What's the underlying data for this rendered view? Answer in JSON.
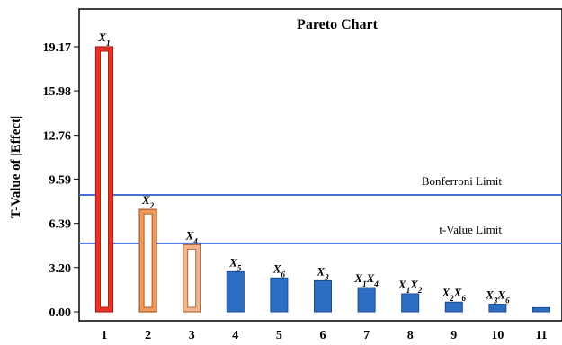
{
  "chart_data": {
    "type": "bar",
    "title": "Pareto Chart",
    "xlabel": "",
    "ylabel": "T-Value of |Effect|",
    "categories": [
      "1",
      "2",
      "3",
      "4",
      "5",
      "6",
      "7",
      "8",
      "9",
      "10",
      "11"
    ],
    "values": [
      19.17,
      7.4,
      4.85,
      2.9,
      2.45,
      2.25,
      1.75,
      1.3,
      0.7,
      0.55,
      0.3
    ],
    "bar_labels": [
      {
        "base": "X",
        "sub": "1"
      },
      {
        "base": "X",
        "sub": "2"
      },
      {
        "base": "X",
        "sub": "4"
      },
      {
        "base": "X",
        "sub": "5"
      },
      {
        "base": "X",
        "sub": "6"
      },
      {
        "base": "X",
        "sub": "3"
      },
      {
        "base": "X",
        "sub": "1",
        "base2": "X",
        "sub2": "4"
      },
      {
        "base": "X",
        "sub": "1",
        "base2": "X",
        "sub2": "2"
      },
      {
        "base": "X",
        "sub": "2",
        "base2": "X",
        "sub2": "6"
      },
      {
        "base": "X",
        "sub": "3",
        "base2": "X",
        "sub2": "6"
      },
      null
    ],
    "bar_styles": [
      "red-hollow",
      "orange-hollow",
      "peach-hollow",
      "blue",
      "blue",
      "blue",
      "blue",
      "blue",
      "blue",
      "blue",
      "blue"
    ],
    "yticks": [
      "0.00",
      "3.20",
      "6.39",
      "9.59",
      "12.76",
      "15.98",
      "19.17"
    ],
    "ylim": [
      0,
      21.2
    ],
    "reference_lines": [
      {
        "label": "Bonferroni Limit",
        "value": 8.45
      },
      {
        "label": "t-Value Limit",
        "value": 4.95
      }
    ],
    "colors": {
      "red_fill": "#e8332a",
      "red_edge": "#b01e17",
      "orange_fill": "#ef9a5c",
      "orange_edge": "#a85a24",
      "peach_fill": "#f2b48c",
      "peach_edge": "#a86a3c",
      "blue_fill": "#2c6ec4",
      "blue_edge": "#1a4a8a",
      "ref_line": "#4a6fd4"
    }
  }
}
